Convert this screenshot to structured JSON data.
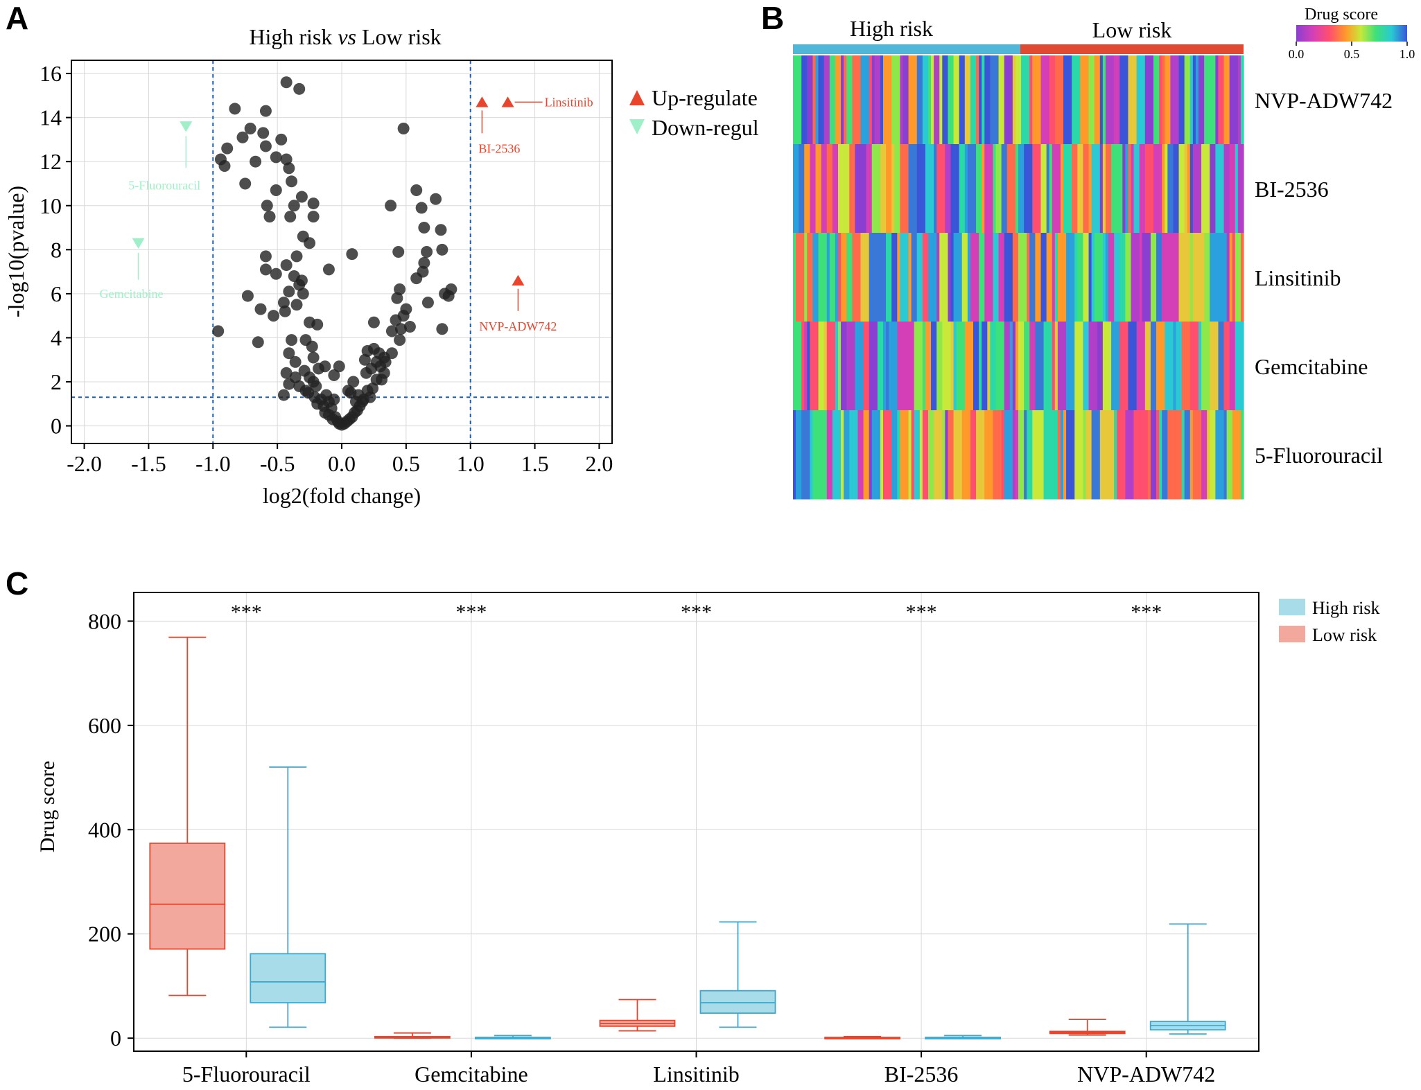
{
  "panels": {
    "a": {
      "letter": "A",
      "title_plain": "High risk ",
      "title_italic": "vs",
      "title_rest": " Low risk",
      "xlabel": "log2(fold change)",
      "ylabel": "-log10(pvalue)",
      "legend": [
        {
          "label": "Up-regulate",
          "symbol": "triangle-up",
          "color": "#e8452c"
        },
        {
          "label": "Down-regul",
          "symbol": "triangle-down",
          "color": "#9ff0c8"
        }
      ],
      "xticks": [
        "-2.0",
        "-1.5",
        "-1.0",
        "-0.5",
        "0.0",
        "0.5",
        "1.0",
        "1.5",
        "2.0"
      ],
      "yticks": [
        "0",
        "2",
        "4",
        "6",
        "8",
        "10",
        "12",
        "14",
        "16"
      ]
    },
    "b": {
      "letter": "B",
      "group_labels": [
        "High risk",
        "Low risk"
      ],
      "colorbar_title": "Drug score",
      "colorbar_ticks": [
        "0.0",
        "0.5",
        "1.0"
      ],
      "row_labels": [
        "NVP-ADW742",
        "BI-2536",
        "Linsitinib",
        "Gemcitabine",
        "5-Fluorouracil"
      ],
      "group_colors": [
        "#4fb8d8",
        "#e04a32"
      ]
    },
    "c": {
      "letter": "C",
      "ylabel": "Drug score",
      "yticks": [
        "0",
        "200",
        "400",
        "600",
        "800"
      ],
      "categories": [
        "5-Fluorouracil",
        "Gemcitabine",
        "Linsitinib",
        "BI-2536",
        "NVP-ADW742"
      ],
      "significance": [
        "***",
        "***",
        "***",
        "***",
        "***"
      ],
      "legend": [
        {
          "label": "High risk",
          "color": "#a8dce8"
        },
        {
          "label": "Low risk",
          "color": "#f2a89c"
        }
      ]
    }
  },
  "chart_data": [
    {
      "type": "scatter",
      "title": "High risk vs Low risk",
      "xlabel": "log2(fold change)",
      "ylabel": "-log10(pvalue)",
      "xlim": [
        -2.1,
        2.1
      ],
      "ylim": [
        -0.8,
        16.6
      ],
      "cutoffs": {
        "x": [
          -1.0,
          1.0
        ],
        "y": 1.3
      },
      "grid": true,
      "legend_position": "right",
      "highlighted": [
        {
          "name": "Linsitinib",
          "x": 1.29,
          "y": 14.7,
          "direction": "up"
        },
        {
          "name": "BI-2536",
          "x": 1.09,
          "y": 14.7,
          "direction": "up"
        },
        {
          "name": "NVP-ADW742",
          "x": 1.37,
          "y": 6.6,
          "direction": "up"
        },
        {
          "name": "5-Fluorouracil",
          "x": -1.21,
          "y": 13.6,
          "direction": "down"
        },
        {
          "name": "Gemcitabine",
          "x": -1.58,
          "y": 8.3,
          "direction": "down"
        }
      ],
      "points": [
        [
          -0.43,
          15.6
        ],
        [
          -0.33,
          15.3
        ],
        [
          -0.83,
          14.4
        ],
        [
          -0.59,
          14.3
        ],
        [
          -0.71,
          13.5
        ],
        [
          -0.61,
          13.3
        ],
        [
          -0.77,
          13.1
        ],
        [
          -0.47,
          13.0
        ],
        [
          -0.89,
          12.6
        ],
        [
          -0.59,
          12.7
        ],
        [
          -0.51,
          12.2
        ],
        [
          -0.67,
          12.0
        ],
        [
          -0.94,
          12.1
        ],
        [
          -0.91,
          11.8
        ],
        [
          -0.43,
          12.1
        ],
        [
          -0.41,
          11.7
        ],
        [
          -0.39,
          11.1
        ],
        [
          -0.75,
          11.0
        ],
        [
          -0.51,
          10.7
        ],
        [
          -0.31,
          10.4
        ],
        [
          -0.58,
          10.0
        ],
        [
          -0.37,
          10.0
        ],
        [
          -0.22,
          10.1
        ],
        [
          -0.56,
          9.5
        ],
        [
          -0.4,
          9.5
        ],
        [
          -0.22,
          9.5
        ],
        [
          -0.3,
          8.6
        ],
        [
          -0.25,
          8.3
        ],
        [
          -0.59,
          7.7
        ],
        [
          -0.35,
          7.7
        ],
        [
          -0.43,
          7.3
        ],
        [
          -0.59,
          7.1
        ],
        [
          -0.1,
          7.1
        ],
        [
          0.08,
          7.8
        ],
        [
          -0.51,
          6.9
        ],
        [
          -0.37,
          6.8
        ],
        [
          -0.31,
          6.6
        ],
        [
          -0.33,
          6.4
        ],
        [
          -0.3,
          6.0
        ],
        [
          -0.41,
          6.1
        ],
        [
          -0.45,
          5.6
        ],
        [
          -0.73,
          5.9
        ],
        [
          -0.35,
          5.5
        ],
        [
          -0.63,
          5.3
        ],
        [
          -0.53,
          5.0
        ],
        [
          -0.44,
          5.2
        ],
        [
          -0.25,
          4.7
        ],
        [
          -0.19,
          4.6
        ],
        [
          -0.96,
          4.3
        ],
        [
          -0.65,
          3.8
        ],
        [
          -0.39,
          3.9
        ],
        [
          -0.28,
          3.9
        ],
        [
          -0.23,
          3.6
        ],
        [
          -0.41,
          3.3
        ],
        [
          -0.22,
          3.1
        ],
        [
          -0.36,
          2.9
        ],
        [
          -0.29,
          2.5
        ],
        [
          -0.43,
          2.4
        ],
        [
          -0.36,
          2.2
        ],
        [
          -0.25,
          2.2
        ],
        [
          -0.18,
          2.6
        ],
        [
          -0.13,
          2.7
        ],
        [
          -0.02,
          2.7
        ],
        [
          -0.41,
          1.9
        ],
        [
          -0.33,
          1.8
        ],
        [
          -0.2,
          1.8
        ],
        [
          -0.45,
          1.4
        ],
        [
          -0.12,
          1.4
        ],
        [
          -0.26,
          1.5
        ],
        [
          -0.21,
          1.3
        ],
        [
          -0.16,
          1.2
        ],
        [
          -0.1,
          1.1
        ],
        [
          -0.19,
          1.0
        ],
        [
          -0.14,
          0.9
        ],
        [
          -0.08,
          0.8
        ],
        [
          -0.13,
          0.6
        ],
        [
          -0.1,
          0.5
        ],
        [
          -0.05,
          0.4
        ],
        [
          -0.07,
          0.3
        ],
        [
          -0.03,
          0.2
        ],
        [
          -0.02,
          0.1
        ],
        [
          0.0,
          0.05
        ],
        [
          0.02,
          0.1
        ],
        [
          0.04,
          0.2
        ],
        [
          0.06,
          0.3
        ],
        [
          0.08,
          0.4
        ],
        [
          0.1,
          0.6
        ],
        [
          0.12,
          0.7
        ],
        [
          0.14,
          0.9
        ],
        [
          0.11,
          1.1
        ],
        [
          0.17,
          1.2
        ],
        [
          0.13,
          1.4
        ],
        [
          0.22,
          1.3
        ],
        [
          0.2,
          1.6
        ],
        [
          0.24,
          1.7
        ],
        [
          0.27,
          2.1
        ],
        [
          0.31,
          2.1
        ],
        [
          0.19,
          2.4
        ],
        [
          0.33,
          2.4
        ],
        [
          0.23,
          2.6
        ],
        [
          0.27,
          2.9
        ],
        [
          0.33,
          3.1
        ],
        [
          0.29,
          3.3
        ],
        [
          0.2,
          3.4
        ],
        [
          0.39,
          3.3
        ],
        [
          0.25,
          3.5
        ],
        [
          0.45,
          3.9
        ],
        [
          0.39,
          4.3
        ],
        [
          0.46,
          4.4
        ],
        [
          0.53,
          4.5
        ],
        [
          0.42,
          4.8
        ],
        [
          0.48,
          5.0
        ],
        [
          0.5,
          5.3
        ],
        [
          0.43,
          5.8
        ],
        [
          0.45,
          6.2
        ],
        [
          0.67,
          5.6
        ],
        [
          0.8,
          6.0
        ],
        [
          0.85,
          6.2
        ],
        [
          0.83,
          5.9
        ],
        [
          0.58,
          6.7
        ],
        [
          0.63,
          7.0
        ],
        [
          0.64,
          7.4
        ],
        [
          0.44,
          7.9
        ],
        [
          0.66,
          7.9
        ],
        [
          0.78,
          8.0
        ],
        [
          0.64,
          9.0
        ],
        [
          0.77,
          8.9
        ],
        [
          0.62,
          9.9
        ],
        [
          0.38,
          10.0
        ],
        [
          0.73,
          10.3
        ],
        [
          0.58,
          10.7
        ],
        [
          0.78,
          4.4
        ],
        [
          0.25,
          4.7
        ],
        [
          0.18,
          3.0
        ],
        [
          0.3,
          2.7
        ],
        [
          0.34,
          2.9
        ],
        [
          0.05,
          1.6
        ],
        [
          -0.06,
          1.2
        ],
        [
          0.07,
          1.5
        ],
        [
          0.16,
          1.1
        ],
        [
          0.48,
          13.5
        ],
        [
          -0.06,
          2.3
        ],
        [
          0.09,
          2.0
        ],
        [
          -0.22,
          2.0
        ],
        [
          -0.28,
          1.6
        ]
      ]
    },
    {
      "type": "heatmap",
      "rows": [
        "NVP-ADW742",
        "BI-2536",
        "Linsitinib",
        "Gemcitabine",
        "5-Fluorouracil"
      ],
      "column_groups": [
        "High risk",
        "Low risk"
      ],
      "color_range": [
        0.0,
        1.0
      ],
      "colorbar_title": "Drug score"
    },
    {
      "type": "box",
      "categories": [
        "5-Fluorouracil",
        "Gemcitabine",
        "Linsitinib",
        "BI-2536",
        "NVP-ADW742"
      ],
      "ylabel": "Drug score",
      "ylim": [
        -25,
        855
      ],
      "grid": true,
      "legend_position": "top-right",
      "series": [
        {
          "name": "Low risk",
          "color": "#e8452c",
          "fill": "#f2a89c",
          "boxes": [
            {
              "min": 82,
              "q1": 171,
              "median": 257,
              "q3": 374,
              "max": 769
            },
            {
              "min": 0,
              "q1": 1,
              "median": 2,
              "q3": 3,
              "max": 10
            },
            {
              "min": 14,
              "q1": 23,
              "median": 28,
              "q3": 34,
              "max": 74
            },
            {
              "min": 0,
              "q1": 0.5,
              "median": 1,
              "q3": 1.5,
              "max": 3
            },
            {
              "min": 6,
              "q1": 9,
              "median": 11,
              "q3": 13,
              "max": 36
            }
          ]
        },
        {
          "name": "High risk",
          "color": "#3fa8cf",
          "fill": "#a8dce8",
          "boxes": [
            {
              "min": 21,
              "q1": 68,
              "median": 108,
              "q3": 162,
              "max": 520
            },
            {
              "min": 0,
              "q1": 0.5,
              "median": 1,
              "q3": 1.5,
              "max": 5
            },
            {
              "min": 21,
              "q1": 48,
              "median": 68,
              "q3": 91,
              "max": 223
            },
            {
              "min": 0,
              "q1": 0.5,
              "median": 1,
              "q3": 1.5,
              "max": 5
            },
            {
              "min": 8,
              "q1": 16,
              "median": 24,
              "q3": 32,
              "max": 219
            }
          ]
        }
      ]
    }
  ]
}
